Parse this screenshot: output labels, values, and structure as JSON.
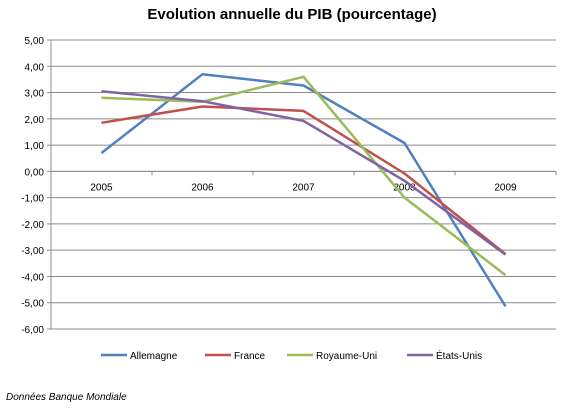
{
  "chart_data": {
    "type": "line",
    "title": "Evolution annuelle du PIB (pourcentage)",
    "xlabel": "",
    "ylabel": "",
    "categories": [
      "2005",
      "2006",
      "2007",
      "2008",
      "2009"
    ],
    "ylim": [
      -6,
      5
    ],
    "ytick_labels": [
      "5,00",
      "4,00",
      "3,00",
      "2,00",
      "1,00",
      "0,00",
      "-1,00",
      "-2,00",
      "-3,00",
      "-4,00",
      "-5,00",
      "-6,00"
    ],
    "grid": true,
    "legend_position": "bottom",
    "series": [
      {
        "name": "Allemagne",
        "color": "#4F81BD",
        "values": [
          0.7,
          3.7,
          3.27,
          1.08,
          -5.14
        ]
      },
      {
        "name": "France",
        "color": "#C0504D",
        "values": [
          1.85,
          2.47,
          2.3,
          -0.08,
          -3.15
        ]
      },
      {
        "name": "Royaume-Uni",
        "color": "#9BBB59",
        "values": [
          2.8,
          2.65,
          3.6,
          -1.0,
          -3.95
        ]
      },
      {
        "name": "États-Unis",
        "color": "#8064A2",
        "values": [
          3.05,
          2.67,
          1.92,
          -0.36,
          -3.17
        ]
      }
    ]
  },
  "source_note": "Données Banque Mondiale"
}
